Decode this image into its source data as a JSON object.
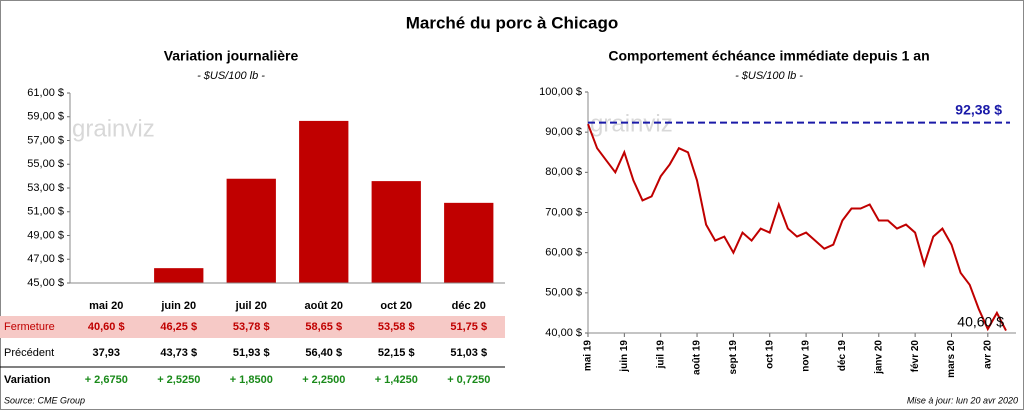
{
  "title": "Marché du porc à Chicago",
  "watermark": "grainviz",
  "footer": {
    "source": "Source: CME Group",
    "updated": "Mise à jour: lun 20 avr 2020"
  },
  "chart_data": [
    {
      "type": "bar",
      "title": "Variation journalière",
      "subtitle": "- $US/100 lb -",
      "categories": [
        "mai 20",
        "juin 20",
        "juil 20",
        "août 20",
        "oct 20",
        "déc 20"
      ],
      "series": [
        {
          "name": "Fermeture",
          "color": "#c00000",
          "values": [
            40.6,
            46.25,
            53.78,
            58.65,
            53.58,
            51.75
          ],
          "value_labels": [
            "40,60  $",
            "46,25  $",
            "53,78  $",
            "58,65  $",
            "53,58  $",
            "51,75  $"
          ]
        }
      ],
      "ylim": [
        45,
        61
      ],
      "yticks": [
        {
          "value": 45,
          "label": "45,00 $"
        },
        {
          "value": 47,
          "label": "47,00 $"
        },
        {
          "value": 49,
          "label": "49,00 $"
        },
        {
          "value": 51,
          "label": "51,00 $"
        },
        {
          "value": 53,
          "label": "53,00 $"
        },
        {
          "value": 55,
          "label": "55,00 $"
        },
        {
          "value": 57,
          "label": "57,00 $"
        },
        {
          "value": 59,
          "label": "59,00 $"
        },
        {
          "value": 61,
          "label": "61,00 $"
        }
      ],
      "grid": false
    },
    {
      "type": "line",
      "title": "Comportement  échéance immédiate depuis 1 an",
      "subtitle": "- $US/100 lb -",
      "categories": [
        "mai 19",
        null,
        null,
        null,
        "juin 19",
        null,
        null,
        null,
        "juil 19",
        null,
        null,
        null,
        "août 19",
        null,
        null,
        null,
        "sept 19",
        null,
        null,
        null,
        "oct 19",
        null,
        null,
        null,
        "nov 19",
        null,
        null,
        null,
        "déc 19",
        null,
        null,
        null,
        "janv 20",
        null,
        null,
        null,
        "févr 20",
        null,
        null,
        null,
        "mars 20",
        null,
        null,
        null,
        "avr 20",
        null,
        null
      ],
      "series": [
        {
          "name": "Porc",
          "color": "#c00000",
          "values": [
            92,
            86,
            83,
            80,
            85,
            78,
            73,
            74,
            79,
            82,
            86,
            85,
            78,
            67,
            63,
            64,
            60,
            65,
            63,
            66,
            65,
            72,
            66,
            64,
            65,
            63,
            61,
            62,
            68,
            71,
            71,
            72,
            68,
            68,
            66,
            67,
            65,
            57,
            64,
            66,
            62,
            55,
            52,
            46,
            41,
            45,
            40.6
          ]
        }
      ],
      "ylim": [
        40,
        100
      ],
      "yticks": [
        {
          "value": 40,
          "label": "40,00 $"
        },
        {
          "value": 50,
          "label": "50,00 $"
        },
        {
          "value": 60,
          "label": "60,00 $"
        },
        {
          "value": 70,
          "label": "70,00 $"
        },
        {
          "value": 80,
          "label": "80,00 $"
        },
        {
          "value": 90,
          "label": "90,00 $"
        },
        {
          "value": 100,
          "label": "100,00 $"
        }
      ],
      "reference": {
        "value": 92.38,
        "label": "92,38 $",
        "color": "#1a1aa8"
      },
      "annotations": [
        {
          "text": "40,60 $"
        }
      ],
      "grid": false
    }
  ],
  "table": {
    "rows": [
      {
        "label": "Précédent",
        "cells": [
          "37,93",
          "43,73  $",
          "51,93  $",
          "56,40  $",
          "52,15  $",
          "51,03  $"
        ]
      },
      {
        "label": "Variation",
        "cells": [
          "+ 2,6750",
          "+ 2,5250",
          "+ 1,8500",
          "+ 2,2500",
          "+ 1,4250",
          "+ 0,7250"
        ]
      }
    ]
  }
}
